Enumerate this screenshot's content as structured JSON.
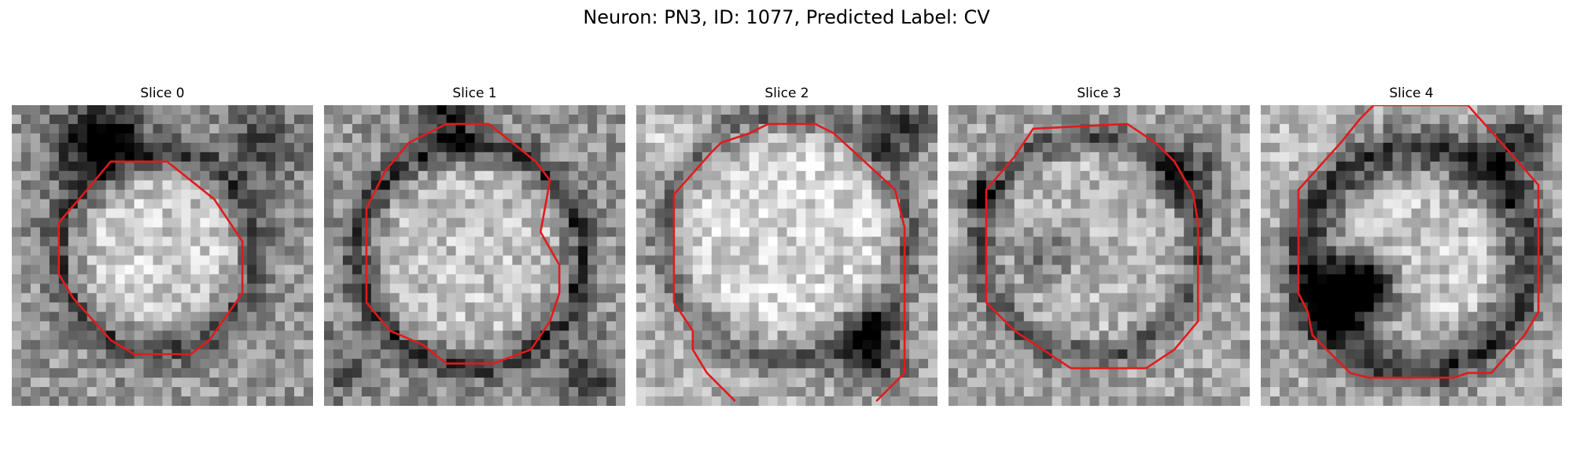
{
  "figure": {
    "title": "Neuron: PN3, ID: 1077, Predicted Label: CV",
    "contour_color": "#e31a1c",
    "colormap": "grayscale",
    "panels": [
      {
        "title": "Slice 0",
        "pattern": "ring with dark upper-left blotch",
        "contour": "octagon"
      },
      {
        "title": "Slice 1",
        "pattern": "round cell with dark rim",
        "contour": "octagon"
      },
      {
        "title": "Slice 2",
        "pattern": "large pale disk",
        "contour": "open polygon"
      },
      {
        "title": "Slice 3",
        "pattern": "noisy disk",
        "contour": "octagon"
      },
      {
        "title": "Slice 4",
        "pattern": "dark ring with dark lower-left blob",
        "contour": "octagon"
      }
    ]
  }
}
